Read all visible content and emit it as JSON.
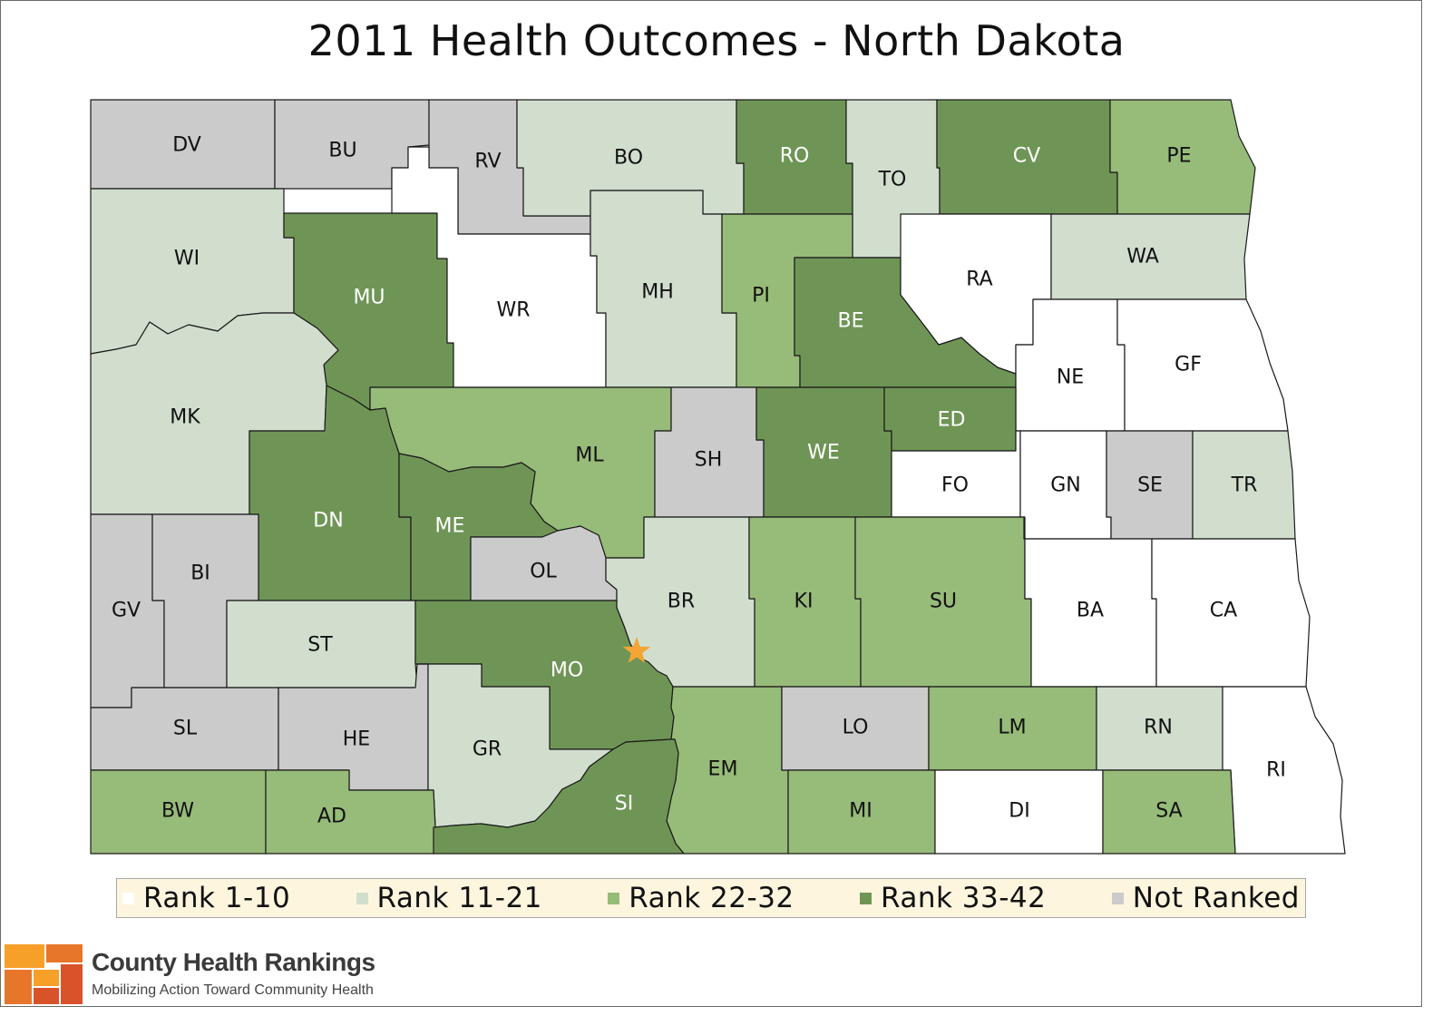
{
  "title": "2011 Health Outcomes - North Dakota",
  "colors": {
    "rank_1_10": "#ffffff",
    "rank_11_21": "#d1dece",
    "rank_22_32": "#97bb79",
    "rank_33_42": "#6f9556",
    "not_ranked": "#cbcbcb",
    "border": "#1a1a1a",
    "star": "#f5a535"
  },
  "legend": [
    {
      "key": "rank_1_10",
      "label": "Rank 1-10"
    },
    {
      "key": "rank_11_21",
      "label": "Rank 11-21"
    },
    {
      "key": "rank_22_32",
      "label": "Rank 22-32"
    },
    {
      "key": "rank_33_42",
      "label": "Rank 33-42"
    },
    {
      "key": "not_ranked",
      "label": "Not Ranked"
    }
  ],
  "counties": [
    {
      "code": "DV",
      "category": "not_ranked"
    },
    {
      "code": "BU",
      "category": "not_ranked"
    },
    {
      "code": "RV",
      "category": "not_ranked"
    },
    {
      "code": "BO",
      "category": "rank_11_21"
    },
    {
      "code": "RO",
      "category": "rank_33_42"
    },
    {
      "code": "TO",
      "category": "rank_11_21"
    },
    {
      "code": "CV",
      "category": "rank_33_42"
    },
    {
      "code": "PE",
      "category": "rank_22_32"
    },
    {
      "code": "WI",
      "category": "rank_11_21"
    },
    {
      "code": "MU",
      "category": "rank_33_42"
    },
    {
      "code": "WR",
      "category": "rank_1_10"
    },
    {
      "code": "MH",
      "category": "rank_11_21"
    },
    {
      "code": "PI",
      "category": "rank_22_32"
    },
    {
      "code": "BE",
      "category": "rank_33_42"
    },
    {
      "code": "RA",
      "category": "rank_1_10"
    },
    {
      "code": "WA",
      "category": "rank_11_21"
    },
    {
      "code": "MK",
      "category": "rank_11_21"
    },
    {
      "code": "NE",
      "category": "rank_1_10"
    },
    {
      "code": "GF",
      "category": "rank_1_10"
    },
    {
      "code": "ML",
      "category": "rank_22_32"
    },
    {
      "code": "SH",
      "category": "not_ranked"
    },
    {
      "code": "WE",
      "category": "rank_33_42"
    },
    {
      "code": "ED",
      "category": "rank_33_42"
    },
    {
      "code": "DN",
      "category": "rank_33_42"
    },
    {
      "code": "ME",
      "category": "rank_33_42"
    },
    {
      "code": "FO",
      "category": "rank_1_10"
    },
    {
      "code": "GN",
      "category": "rank_1_10"
    },
    {
      "code": "SE",
      "category": "not_ranked"
    },
    {
      "code": "TR",
      "category": "rank_11_21"
    },
    {
      "code": "GV",
      "category": "not_ranked"
    },
    {
      "code": "BI",
      "category": "not_ranked"
    },
    {
      "code": "OL",
      "category": "not_ranked"
    },
    {
      "code": "BR",
      "category": "rank_11_21"
    },
    {
      "code": "KI",
      "category": "rank_22_32"
    },
    {
      "code": "SU",
      "category": "rank_22_32"
    },
    {
      "code": "BA",
      "category": "rank_1_10"
    },
    {
      "code": "CA",
      "category": "rank_1_10"
    },
    {
      "code": "ST",
      "category": "rank_11_21"
    },
    {
      "code": "MO",
      "category": "rank_33_42"
    },
    {
      "code": "SL",
      "category": "not_ranked"
    },
    {
      "code": "HE",
      "category": "not_ranked"
    },
    {
      "code": "GR",
      "category": "rank_11_21"
    },
    {
      "code": "EM",
      "category": "rank_22_32"
    },
    {
      "code": "LO",
      "category": "not_ranked"
    },
    {
      "code": "LM",
      "category": "rank_22_32"
    },
    {
      "code": "RN",
      "category": "rank_11_21"
    },
    {
      "code": "RI",
      "category": "rank_1_10"
    },
    {
      "code": "BW",
      "category": "rank_22_32"
    },
    {
      "code": "AD",
      "category": "rank_22_32"
    },
    {
      "code": "SI",
      "category": "rank_33_42"
    },
    {
      "code": "MI",
      "category": "rank_22_32"
    },
    {
      "code": "DI",
      "category": "rank_1_10"
    },
    {
      "code": "SA",
      "category": "rank_22_32"
    }
  ],
  "brand": {
    "name": "County Health Rankings",
    "tagline": "Mobilizing Action Toward Community Health",
    "logo_colors": [
      "#f6a02a",
      "#e8762a",
      "#d9532a"
    ]
  }
}
